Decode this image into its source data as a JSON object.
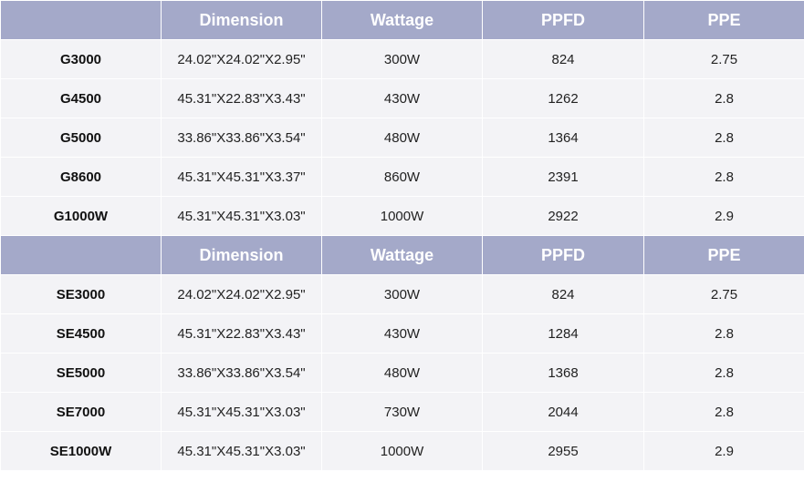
{
  "tables": [
    {
      "headers": [
        "",
        "Dimension",
        "Wattage",
        "PPFD",
        "PPE"
      ],
      "rows": [
        [
          "G3000",
          "24.02\"X24.02\"X2.95\"",
          "300W",
          "824",
          "2.75"
        ],
        [
          "G4500",
          "45.31\"X22.83\"X3.43\"",
          "430W",
          "1262",
          "2.8"
        ],
        [
          "G5000",
          "33.86\"X33.86\"X3.54\"",
          "480W",
          "1364",
          "2.8"
        ],
        [
          "G8600",
          "45.31\"X45.31\"X3.37\"",
          "860W",
          "2391",
          "2.8"
        ],
        [
          "G1000W",
          "45.31\"X45.31\"X3.03\"",
          "1000W",
          "2922",
          "2.9"
        ]
      ]
    },
    {
      "headers": [
        "",
        "Dimension",
        "Wattage",
        "PPFD",
        "PPE"
      ],
      "rows": [
        [
          "SE3000",
          "24.02\"X24.02\"X2.95\"",
          "300W",
          "824",
          "2.75"
        ],
        [
          "SE4500",
          "45.31\"X22.83\"X3.43\"",
          "430W",
          "1284",
          "2.8"
        ],
        [
          "SE5000",
          "33.86\"X33.86\"X3.54\"",
          "480W",
          "1368",
          "2.8"
        ],
        [
          "SE7000",
          "45.31\"X45.31\"X3.03\"",
          "730W",
          "2044",
          "2.8"
        ],
        [
          "SE1000W",
          "45.31\"X45.31\"X3.03\"",
          "1000W",
          "2955",
          "2.9"
        ]
      ]
    }
  ],
  "colors": {
    "header_bg": "#a4a9c9",
    "header_text": "#ffffff",
    "row_bg": "#f3f3f6",
    "row_text": "#222222"
  }
}
